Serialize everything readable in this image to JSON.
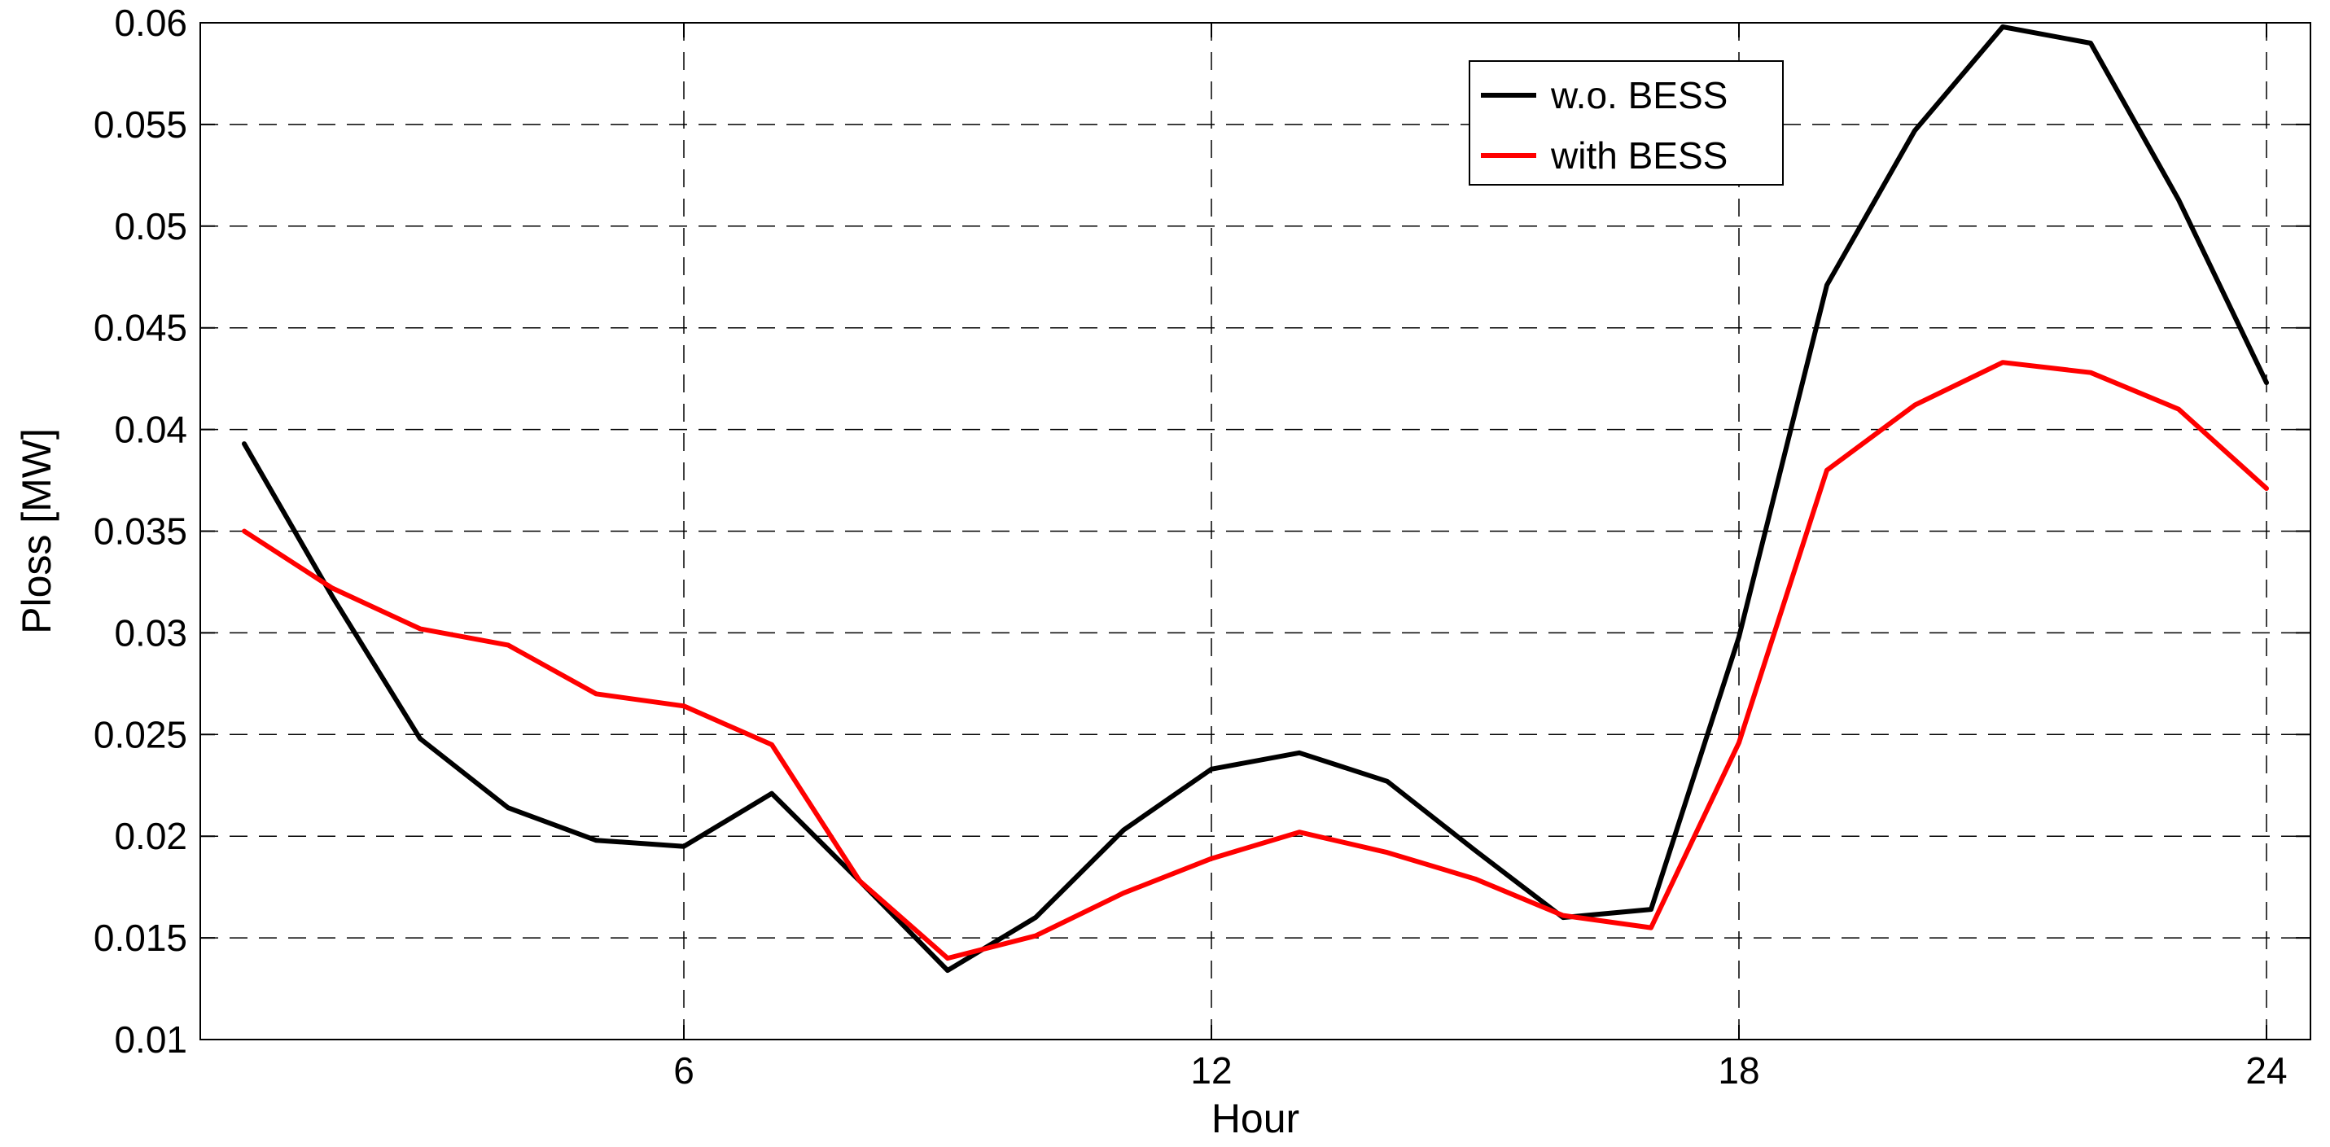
{
  "chart_data": {
    "type": "line",
    "title": "",
    "xlabel": "Hour",
    "ylabel": "Ploss [MW]",
    "xlim": [
      0.5,
      24.5
    ],
    "ylim": [
      0.01,
      0.06
    ],
    "x_ticks": [
      6,
      12,
      18,
      24
    ],
    "x_tick_labels": [
      "6",
      "12",
      "18",
      "24"
    ],
    "y_ticks": [
      0.01,
      0.015,
      0.02,
      0.025,
      0.03,
      0.035,
      0.04,
      0.045,
      0.05,
      0.055,
      0.06
    ],
    "y_tick_labels": [
      "0.01",
      "0.015",
      "0.02",
      "0.025",
      "0.03",
      "0.035",
      "0.04",
      "0.045",
      "0.05",
      "0.055",
      "0.06"
    ],
    "grid": true,
    "legend_position": "top-right",
    "x": [
      1,
      2,
      3,
      4,
      5,
      6,
      7,
      8,
      9,
      10,
      11,
      12,
      13,
      14,
      15,
      16,
      17,
      18,
      19,
      20,
      21,
      22,
      23,
      24
    ],
    "series": [
      {
        "name": "w.o. BESS",
        "color": "#000000",
        "values": [
          0.0393,
          0.0318,
          0.0248,
          0.0214,
          0.0198,
          0.0195,
          0.0221,
          0.0178,
          0.0134,
          0.016,
          0.0203,
          0.0233,
          0.0241,
          0.0227,
          0.0193,
          0.016,
          0.0164,
          0.0298,
          0.0471,
          0.0547,
          0.0598,
          0.059,
          0.0513,
          0.0423
        ]
      },
      {
        "name": "with BESS",
        "color": "#ff0000",
        "values": [
          0.035,
          0.0322,
          0.0302,
          0.0294,
          0.027,
          0.0264,
          0.0245,
          0.0178,
          0.014,
          0.0151,
          0.0172,
          0.0189,
          0.0202,
          0.0192,
          0.0179,
          0.0161,
          0.0155,
          0.0246,
          0.038,
          0.0412,
          0.0433,
          0.0428,
          0.041,
          0.0371
        ]
      }
    ]
  }
}
